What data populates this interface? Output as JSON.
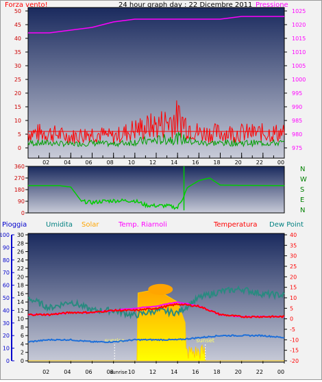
{
  "title": "24 hour graph day : 22 Dicembre 2011",
  "colors": {
    "wind_label": "#ff0000",
    "pressure": "#ff00ff",
    "dir_label": "#008000",
    "rain": "#0000cc",
    "hum": "#008080",
    "solar": "#ffa500",
    "temp_cold": "#ff00ff",
    "temp": "#ff0000",
    "dew": "#008080",
    "solar_fill_top": "#ffa500",
    "solar_fill_bottom": "#ffff00"
  },
  "panel_top": {
    "left_label": "Forza vento!",
    "right_label": "Pressione",
    "left_ticks": [
      "0",
      "5",
      "10",
      "15",
      "20",
      "25",
      "30",
      "35",
      "40",
      "45",
      "50"
    ],
    "right_ticks": [
      "975",
      "980",
      "985",
      "990",
      "995",
      "1000",
      "1005",
      "1010",
      "1015",
      "1020",
      "1025"
    ],
    "x_ticks": [
      "02",
      "04",
      "06",
      "08",
      "10",
      "12",
      "14",
      "16",
      "18",
      "20",
      "22",
      "00"
    ]
  },
  "panel_mid": {
    "left_ticks": [
      "0",
      "90",
      "180",
      "270",
      "360"
    ],
    "compass": [
      "N",
      "W",
      "S",
      "E",
      "N"
    ],
    "x_ticks": [
      "02",
      "04",
      "06",
      "08",
      "10",
      "12",
      "14",
      "16",
      "18",
      "20",
      "22",
      "00"
    ]
  },
  "panel_bot": {
    "header_labels": [
      "Pioggia",
      "Umidita",
      "Solar",
      "Temp. Riarnoli",
      "Temperatura",
      "Dew Point"
    ],
    "rain_ticks": [
      "0",
      "10",
      "20",
      "30",
      "40",
      "50",
      "60",
      "70",
      "80",
      "90",
      "100"
    ],
    "solar_ticks": [
      "0",
      "2",
      "4",
      "6",
      "8",
      "10",
      "12",
      "14",
      "16",
      "18",
      "20",
      "22",
      "24",
      "26",
      "28",
      "30"
    ],
    "temp_ticks": [
      "-20",
      "-15",
      "-10",
      "-5",
      "0",
      "5",
      "10",
      "15",
      "20",
      "25",
      "30",
      "35",
      "40"
    ],
    "x_ticks": [
      "02",
      "04",
      "06",
      "08",
      "sunrise",
      "10",
      "12",
      "14",
      "16",
      "18",
      "20",
      "22",
      "00"
    ],
    "sunrise_label": "sunrise",
    "sunset_label": "sunset"
  },
  "chart_data": [
    {
      "type": "line",
      "title": "24 hour graph day : 22 Dicembre 2011",
      "x_hours": [
        0,
        2,
        4,
        6,
        8,
        10,
        12,
        14,
        16,
        18,
        20,
        22,
        24
      ],
      "series": [
        {
          "name": "Pressione",
          "axis": "right",
          "values": [
            1017,
            1017,
            1018,
            1019,
            1021,
            1022,
            1022,
            1022,
            1022,
            1022,
            1023,
            1023,
            1023
          ]
        },
        {
          "name": "Forza vento!",
          "axis": "left",
          "values": [
            4,
            4,
            3,
            4,
            3,
            5,
            6,
            8,
            4,
            4,
            4,
            4,
            4
          ]
        }
      ],
      "ylim_left": [
        0,
        50
      ],
      "ylim_right": [
        975,
        1025
      ]
    },
    {
      "type": "line",
      "ylabel": "",
      "x_hours": [
        0,
        1,
        3,
        4,
        5,
        6,
        7,
        8,
        9,
        10,
        11,
        12,
        13,
        14,
        15,
        16,
        17,
        18,
        24
      ],
      "series": [
        {
          "name": "",
          "values": [
            210,
            210,
            210,
            200,
            90,
            80,
            90,
            95,
            95,
            95,
            60,
            55,
            55,
            40,
            200,
            250,
            270,
            215,
            210
          ]
        }
      ],
      "ylim": [
        0,
        360
      ]
    },
    {
      "type": "line",
      "x_hours": [
        0,
        2,
        4,
        6,
        8,
        10,
        12,
        14,
        16,
        18,
        20,
        22,
        24
      ],
      "series": [
        {
          "name": "Temperatura",
          "axis": "right",
          "values": [
            2,
            2,
            3,
            3,
            4,
            4,
            5,
            7,
            6,
            2,
            1,
            1,
            1
          ]
        },
        {
          "name": "Temp. Riarnoli",
          "axis": "right",
          "values": [
            2,
            2,
            3,
            3,
            4,
            5,
            6,
            8,
            6,
            2,
            1,
            1,
            1
          ]
        },
        {
          "name": "Dew Point",
          "axis": "right",
          "values": [
            -11,
            -10,
            -10,
            -11,
            -11,
            -10,
            -10,
            -10,
            -9,
            -8,
            -8,
            -8,
            -9
          ]
        },
        {
          "name": "Umidita",
          "axis": "rain",
          "values": [
            50,
            42,
            47,
            40,
            40,
            36,
            40,
            38,
            50,
            55,
            57,
            53,
            52
          ]
        },
        {
          "name": "Solar",
          "axis": "solar",
          "values": [
            0,
            0,
            0,
            0,
            0,
            16,
            17,
            14,
            0,
            0,
            0,
            0,
            0
          ]
        }
      ],
      "ylim_rain": [
        0,
        100
      ],
      "ylim_solar": [
        0,
        30
      ],
      "ylim_temp": [
        -20,
        40
      ],
      "sunrise_hour": 8.1,
      "sunset_hour": 16.6
    }
  ]
}
